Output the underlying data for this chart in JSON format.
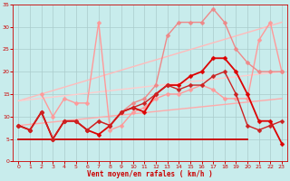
{
  "background_color": "#c8ecec",
  "grid_color": "#aacccc",
  "xlabel": "Vent moyen/en rafales ( km/h )",
  "xlabel_color": "#cc0000",
  "tick_color": "#cc0000",
  "xlim": [
    -0.5,
    23.5
  ],
  "ylim": [
    0,
    35
  ],
  "yticks": [
    0,
    5,
    10,
    15,
    20,
    25,
    30,
    35
  ],
  "xticks": [
    0,
    1,
    2,
    3,
    4,
    5,
    6,
    7,
    8,
    9,
    10,
    11,
    12,
    13,
    14,
    15,
    16,
    17,
    18,
    19,
    20,
    21,
    22,
    23
  ],
  "lines": [
    {
      "x": [
        0,
        23
      ],
      "y": [
        13.5,
        31
      ],
      "color": "#ffbbbb",
      "lw": 1.0,
      "marker": null
    },
    {
      "x": [
        0,
        23
      ],
      "y": [
        13.5,
        20
      ],
      "color": "#ffcccc",
      "lw": 1.0,
      "marker": null
    },
    {
      "x": [
        0,
        23
      ],
      "y": [
        8,
        14
      ],
      "color": "#ffaaaa",
      "lw": 1.0,
      "marker": null
    },
    {
      "x": [
        0,
        20
      ],
      "y": [
        5,
        5
      ],
      "color": "#cc0000",
      "lw": 1.3,
      "marker": null
    },
    {
      "x": [
        2,
        3,
        4,
        5,
        6,
        7,
        8,
        9,
        10,
        11,
        12,
        13,
        14,
        15,
        16,
        17,
        18,
        19,
        20,
        21,
        22,
        23
      ],
      "y": [
        15,
        10,
        14,
        13,
        13,
        31,
        7,
        8,
        11,
        12,
        14,
        15,
        15,
        16,
        17,
        16,
        14,
        14,
        14,
        27,
        31,
        20
      ],
      "color": "#ff9999",
      "lw": 1.0,
      "marker": "D",
      "ms": 2.5
    },
    {
      "x": [
        0,
        1,
        2,
        3,
        4,
        5,
        6,
        7,
        8,
        9,
        10,
        11,
        12,
        13,
        14,
        15,
        16,
        17,
        18,
        19,
        20,
        21,
        22,
        23
      ],
      "y": [
        8,
        7,
        11,
        5,
        9,
        9,
        7,
        9,
        8,
        11,
        13,
        14,
        17,
        28,
        31,
        31,
        31,
        34,
        31,
        25,
        22,
        20,
        20,
        20
      ],
      "color": "#ee8888",
      "lw": 1.0,
      "marker": "D",
      "ms": 2.5
    },
    {
      "x": [
        0,
        1,
        2,
        3,
        4,
        5,
        6,
        7,
        8,
        9,
        10,
        11,
        12,
        13,
        14,
        15,
        16,
        17,
        18,
        19,
        20,
        21,
        22,
        23
      ],
      "y": [
        8,
        7,
        11,
        5,
        9,
        9,
        7,
        6,
        8,
        11,
        12,
        11,
        15,
        17,
        17,
        19,
        20,
        23,
        23,
        20,
        15,
        9,
        9,
        4
      ],
      "color": "#dd0000",
      "lw": 1.3,
      "marker": "D",
      "ms": 2.5
    },
    {
      "x": [
        0,
        1,
        2,
        3,
        4,
        5,
        6,
        7,
        8,
        9,
        10,
        11,
        12,
        13,
        14,
        15,
        16,
        17,
        18,
        19,
        20,
        21,
        22,
        23
      ],
      "y": [
        8,
        7,
        11,
        5,
        9,
        9,
        7,
        9,
        8,
        11,
        12,
        13,
        15,
        17,
        16,
        17,
        17,
        19,
        20,
        15,
        8,
        7,
        8,
        9
      ],
      "color": "#cc2222",
      "lw": 1.0,
      "marker": "D",
      "ms": 2.5
    }
  ]
}
